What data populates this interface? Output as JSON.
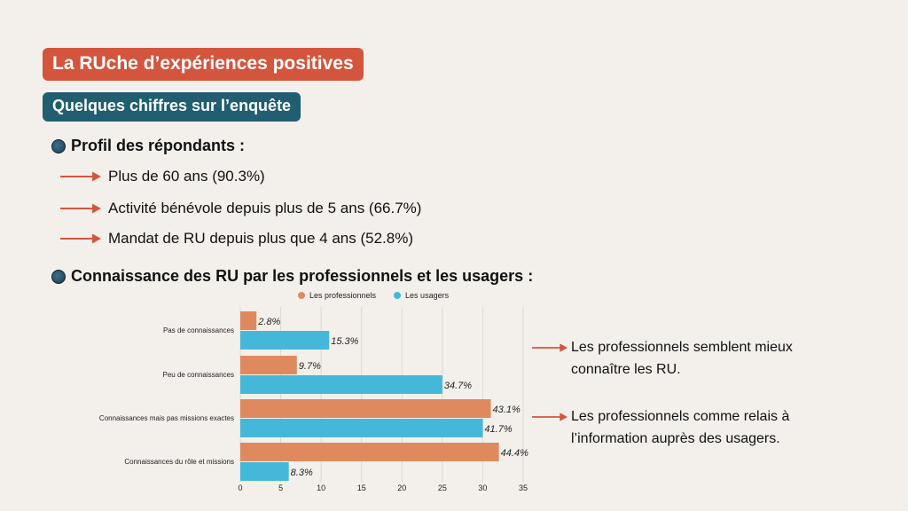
{
  "header": {
    "title": "La RUche d’expériences positives",
    "subtitle": "Quelques chiffres sur l’enquête"
  },
  "profile": {
    "heading": "Profil des répondants :",
    "items": [
      {
        "text": "Plus de 60 ans (90.3%)"
      },
      {
        "text": "Activité bénévole depuis plus de 5 ans (66.7%)"
      },
      {
        "text": "Mandat de RU depuis plus que 4 ans (52.8%)"
      }
    ]
  },
  "knowledge": {
    "heading": "Connaissance des RU par les professionnels et les usagers :"
  },
  "notes": {
    "line1a": "Les professionnels semblent mieux",
    "line1b": "connaître les RU.",
    "line2a": "Les professionnels comme relais à",
    "line2b": "l’information auprès des usagers."
  },
  "colors": {
    "title_bg": "#d4553d",
    "subtitle_bg": "#205e70",
    "arrow": "#d4553d",
    "professionnels": "#de8a5e",
    "usagers": "#45b8d9"
  },
  "chart_data": {
    "type": "bar",
    "orientation": "horizontal",
    "categories": [
      "Pas de connaissances",
      "Peu de connaissances",
      "Connaissances mais pas missions exactes",
      "Connaissances du rôle et missions"
    ],
    "series": [
      {
        "name": "Les professionnels",
        "values": [
          2,
          7,
          31,
          32
        ],
        "labels": [
          "2.8%",
          "9.7%",
          "43.1%",
          "44.4%"
        ]
      },
      {
        "name": "Les usagers",
        "values": [
          11,
          25,
          30,
          6
        ],
        "labels": [
          "15.3%",
          "34.7%",
          "41.7%",
          "8.3%"
        ]
      }
    ],
    "xticks": [
      0,
      5,
      10,
      15,
      20,
      25,
      30,
      35
    ],
    "xlim": [
      0,
      35
    ],
    "grid": true,
    "legend": "top"
  }
}
